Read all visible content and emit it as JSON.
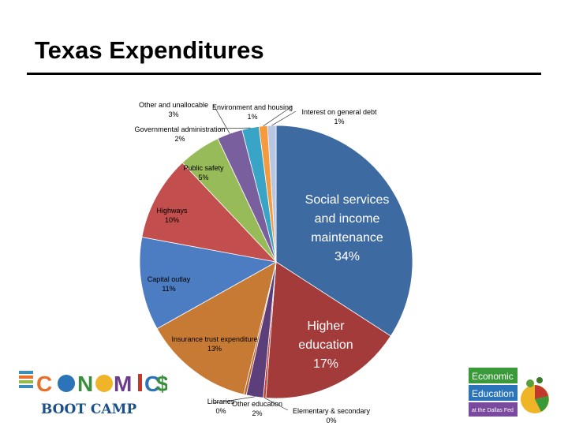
{
  "slide": {
    "title": "Texas Expenditures"
  },
  "chart_data": {
    "type": "pie",
    "start": "12 o'clock",
    "direction": "clockwise",
    "slices": [
      {
        "name": "Social services and income maintenance",
        "label_lines": [
          "Social services",
          "and income",
          "maintenance",
          "34%"
        ],
        "value": 34,
        "color": "#3D6AA1"
      },
      {
        "name": "Higher education",
        "label_lines": [
          "Higher",
          "education",
          "17%"
        ],
        "value": 17,
        "color": "#A33B3B"
      },
      {
        "name": "Elementary & secondary",
        "label_lines": [
          "Elementary & secondary",
          "0%"
        ],
        "value": 0,
        "color": "#C33A2E"
      },
      {
        "name": "Other education",
        "label_lines": [
          "Other education",
          "2%"
        ],
        "value": 2,
        "color": "#5C3F7A"
      },
      {
        "name": "Libraries",
        "label_lines": [
          "Libraries",
          "0%"
        ],
        "value": 0,
        "color": "#C0622A"
      },
      {
        "name": "Insurance trust expenditure",
        "label_lines": [
          "Insurance trust expenditure",
          "13%"
        ],
        "value": 13,
        "color": "#C77A34"
      },
      {
        "name": "Capital outlay",
        "label_lines": [
          "Capital outlay",
          "11%"
        ],
        "value": 11,
        "color": "#4C7CC2"
      },
      {
        "name": "Highways",
        "label_lines": [
          "Highways",
          "10%"
        ],
        "value": 10,
        "color": "#C24E4E"
      },
      {
        "name": "Public safety",
        "label_lines": [
          "Public safety",
          "5%"
        ],
        "value": 5,
        "color": "#98BB59"
      },
      {
        "name": "Other and unallocable",
        "label_lines": [
          "Other and unallocable",
          "3%"
        ],
        "value": 3,
        "color": "#7A5F9E"
      },
      {
        "name": "Governmental administration",
        "label_lines": [
          "Governmental administration",
          "2%"
        ],
        "value": 2,
        "color": "#39A4C6"
      },
      {
        "name": "Environment and housing",
        "label_lines": [
          "Environment and housing",
          "1%"
        ],
        "value": 1,
        "color": "#F59A3E"
      },
      {
        "name": "Interest on general debt",
        "label_lines": [
          "Interest on general debt",
          "1%"
        ],
        "value": 1,
        "color": "#B7C7E3"
      }
    ]
  },
  "logos": {
    "left": {
      "word": "ECONOMICS",
      "sub": "BOOT CAMP"
    },
    "right": {
      "lines": [
        "Economic",
        "Education"
      ],
      "sub": "at the Dallas Fed"
    }
  }
}
